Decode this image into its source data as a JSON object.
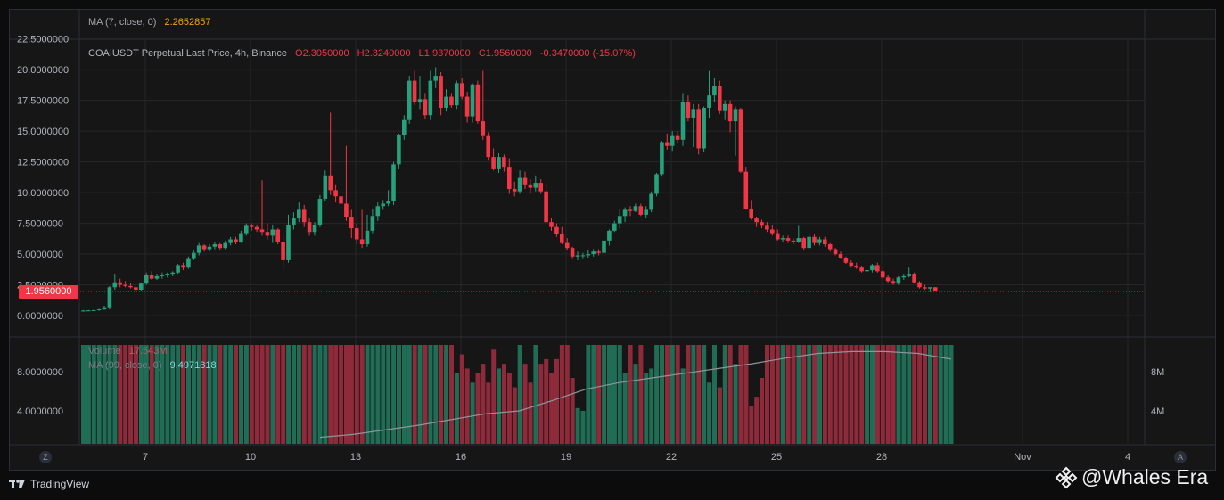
{
  "indicators": {
    "ma7": {
      "label": "MA (7, close, 0)",
      "value": "2.2652857"
    },
    "volume": {
      "label": "Volume",
      "value": "17.543M"
    },
    "ma99": {
      "label": "MA (99, close, 0)",
      "value": "9.4971818"
    }
  },
  "symbol": {
    "title": "COAIUSDT Perpetual Last Price, 4h, Binance",
    "open": "O2.3050000",
    "high": "H2.3240000",
    "low": "L1.9370000",
    "close": "C1.9560000",
    "change": "-0.3470000 (-15.07%)"
  },
  "price_tag": "1.9560000",
  "corner_buttons": {
    "left": "Z",
    "right": "A"
  },
  "footer": {
    "brand": "TradingView",
    "watermark": "@Whales Era"
  },
  "colors": {
    "up": "#26a17b",
    "down": "#f23645",
    "grid": "#262626",
    "ma": "#8f9499"
  },
  "chart_data": {
    "type": "candlestick",
    "price_axis": {
      "ticks": [
        "22.5000000",
        "20.0000000",
        "17.5000000",
        "15.0000000",
        "12.5000000",
        "10.0000000",
        "7.5000000",
        "5.0000000",
        "2.5000000",
        "0.0000000"
      ],
      "range": [
        0,
        22.5
      ]
    },
    "volume_axis_left": {
      "ticks": [
        "8.0000000",
        "4.0000000"
      ]
    },
    "volume_axis_right": {
      "ticks": [
        "8M",
        "4M"
      ],
      "range_million": [
        0,
        11
      ]
    },
    "x_labels": [
      "7",
      "10",
      "13",
      "16",
      "19",
      "22",
      "25",
      "28",
      "Nov",
      "4"
    ],
    "last_price": 1.956,
    "candles_ohlc": [
      [
        0.4,
        0.45,
        0.35,
        0.4
      ],
      [
        0.4,
        0.45,
        0.36,
        0.42
      ],
      [
        0.42,
        0.5,
        0.38,
        0.44
      ],
      [
        0.44,
        0.55,
        0.4,
        0.5
      ],
      [
        0.5,
        0.8,
        0.45,
        0.6
      ],
      [
        0.6,
        2.4,
        0.5,
        2.3
      ],
      [
        2.3,
        3.4,
        2.1,
        2.7
      ],
      [
        2.7,
        3.0,
        2.3,
        2.5
      ],
      [
        2.5,
        2.8,
        2.3,
        2.4
      ],
      [
        2.4,
        2.6,
        2.2,
        2.3
      ],
      [
        2.3,
        2.5,
        1.9,
        2.1
      ],
      [
        2.1,
        2.7,
        2.0,
        2.6
      ],
      [
        2.6,
        3.5,
        2.5,
        3.3
      ],
      [
        3.3,
        3.6,
        2.9,
        3.0
      ],
      [
        3.0,
        3.4,
        2.9,
        3.2
      ],
      [
        3.2,
        3.5,
        3.0,
        3.3
      ],
      [
        3.3,
        3.5,
        3.1,
        3.4
      ],
      [
        3.4,
        3.6,
        3.2,
        3.5
      ],
      [
        3.5,
        4.2,
        3.4,
        4.1
      ],
      [
        4.1,
        4.3,
        3.7,
        3.9
      ],
      [
        3.9,
        4.8,
        3.8,
        4.6
      ],
      [
        4.6,
        5.3,
        4.5,
        5.1
      ],
      [
        5.1,
        5.9,
        4.9,
        5.7
      ],
      [
        5.7,
        5.8,
        5.2,
        5.4
      ],
      [
        5.4,
        5.8,
        5.2,
        5.6
      ],
      [
        5.6,
        6.0,
        5.4,
        5.8
      ],
      [
        5.8,
        5.9,
        5.3,
        5.5
      ],
      [
        5.5,
        6.1,
        5.4,
        5.9
      ],
      [
        5.9,
        6.4,
        5.7,
        6.2
      ],
      [
        6.2,
        6.4,
        5.8,
        6.0
      ],
      [
        6.0,
        6.9,
        5.9,
        6.7
      ],
      [
        6.7,
        7.5,
        6.5,
        7.3
      ],
      [
        7.3,
        7.5,
        6.9,
        7.2
      ],
      [
        7.2,
        7.4,
        6.8,
        7.0
      ],
      [
        7.0,
        11.0,
        6.5,
        6.8
      ],
      [
        6.8,
        7.5,
        6.2,
        6.5
      ],
      [
        6.5,
        7.4,
        5.9,
        7.0
      ],
      [
        7.0,
        7.1,
        5.8,
        6.0
      ],
      [
        6.0,
        6.6,
        3.8,
        4.5
      ],
      [
        4.5,
        8.2,
        4.3,
        7.4
      ],
      [
        7.4,
        8.4,
        7.0,
        7.9
      ],
      [
        7.9,
        9.2,
        7.6,
        8.6
      ],
      [
        8.6,
        9.0,
        7.2,
        7.6
      ],
      [
        7.6,
        7.9,
        6.5,
        6.8
      ],
      [
        6.8,
        7.6,
        6.5,
        7.4
      ],
      [
        7.4,
        9.8,
        7.2,
        9.5
      ],
      [
        9.5,
        11.8,
        9.3,
        11.4
      ],
      [
        11.4,
        16.5,
        9.8,
        10.2
      ],
      [
        10.2,
        10.6,
        9.2,
        9.7
      ],
      [
        9.7,
        10.2,
        6.8,
        9.1
      ],
      [
        9.1,
        13.8,
        7.7,
        8.0
      ],
      [
        8.0,
        8.6,
        6.3,
        7.1
      ],
      [
        7.1,
        7.5,
        5.8,
        6.2
      ],
      [
        6.2,
        8.6,
        5.5,
        5.8
      ],
      [
        5.8,
        8.2,
        5.6,
        6.9
      ],
      [
        6.9,
        8.7,
        6.7,
        8.1
      ],
      [
        8.1,
        9.2,
        7.7,
        8.9
      ],
      [
        8.9,
        9.4,
        8.6,
        9.1
      ],
      [
        9.1,
        10.2,
        8.9,
        9.3
      ],
      [
        9.3,
        12.5,
        9.0,
        12.3
      ],
      [
        12.3,
        14.8,
        11.9,
        14.7
      ],
      [
        14.7,
        16.3,
        14.3,
        15.9
      ],
      [
        15.9,
        19.5,
        15.6,
        19.1
      ],
      [
        19.1,
        19.9,
        17.1,
        17.4
      ],
      [
        17.4,
        19.5,
        16.8,
        17.6
      ],
      [
        17.6,
        18.1,
        16.0,
        16.3
      ],
      [
        16.3,
        19.9,
        15.9,
        19.1
      ],
      [
        19.1,
        20.2,
        18.5,
        19.5
      ],
      [
        19.5,
        19.8,
        16.3,
        16.9
      ],
      [
        16.9,
        18.4,
        16.6,
        17.8
      ],
      [
        17.8,
        18.1,
        16.9,
        17.1
      ],
      [
        17.1,
        19.1,
        16.8,
        18.9
      ],
      [
        18.9,
        19.3,
        17.6,
        17.8
      ],
      [
        17.8,
        18.2,
        15.7,
        16.2
      ],
      [
        16.2,
        18.9,
        15.7,
        18.8
      ],
      [
        18.8,
        19.1,
        15.6,
        15.8
      ],
      [
        15.8,
        19.9,
        14.3,
        14.6
      ],
      [
        14.6,
        14.9,
        12.6,
        12.9
      ],
      [
        12.9,
        13.6,
        11.8,
        11.9
      ],
      [
        11.9,
        13.2,
        11.6,
        12.9
      ],
      [
        12.9,
        13.1,
        11.7,
        12.1
      ],
      [
        12.1,
        12.8,
        9.9,
        10.3
      ],
      [
        10.3,
        10.9,
        9.7,
        10.1
      ],
      [
        10.1,
        11.8,
        9.9,
        11.2
      ],
      [
        11.2,
        11.7,
        10.3,
        10.6
      ],
      [
        10.6,
        11.1,
        9.9,
        10.4
      ],
      [
        10.4,
        11.4,
        10.1,
        10.8
      ],
      [
        10.8,
        11.1,
        9.9,
        10.1
      ],
      [
        10.1,
        10.8,
        7.5,
        7.6
      ],
      [
        7.6,
        7.9,
        6.9,
        7.2
      ],
      [
        7.2,
        7.5,
        6.4,
        6.6
      ],
      [
        6.6,
        7.2,
        5.8,
        5.9
      ],
      [
        5.9,
        6.3,
        5.3,
        5.5
      ],
      [
        5.5,
        5.6,
        4.6,
        4.8
      ],
      [
        4.8,
        5.2,
        4.5,
        4.9
      ],
      [
        4.9,
        5.1,
        4.6,
        4.9
      ],
      [
        4.9,
        5.3,
        4.7,
        5.0
      ],
      [
        5.0,
        5.4,
        4.8,
        5.2
      ],
      [
        5.2,
        5.4,
        4.9,
        5.1
      ],
      [
        5.1,
        6.4,
        5.0,
        6.1
      ],
      [
        6.1,
        7.0,
        5.7,
        6.9
      ],
      [
        6.9,
        7.7,
        6.8,
        7.5
      ],
      [
        7.5,
        8.7,
        7.1,
        8.1
      ],
      [
        8.1,
        8.8,
        7.6,
        8.6
      ],
      [
        8.6,
        8.9,
        8.1,
        8.5
      ],
      [
        8.5,
        9.1,
        8.4,
        8.9
      ],
      [
        8.9,
        9.1,
        8.1,
        8.2
      ],
      [
        8.2,
        8.9,
        7.9,
        8.6
      ],
      [
        8.6,
        10.1,
        8.4,
        9.9
      ],
      [
        9.9,
        11.6,
        9.7,
        11.5
      ],
      [
        11.5,
        14.2,
        11.3,
        14.1
      ],
      [
        14.1,
        14.8,
        13.5,
        13.8
      ],
      [
        13.8,
        15.0,
        13.4,
        14.6
      ],
      [
        14.6,
        15.0,
        14.0,
        14.3
      ],
      [
        14.3,
        18.1,
        13.8,
        17.4
      ],
      [
        17.4,
        17.9,
        15.8,
        16.1
      ],
      [
        16.1,
        17.2,
        13.7,
        16.8
      ],
      [
        16.8,
        17.2,
        13.1,
        13.6
      ],
      [
        13.6,
        17.0,
        13.3,
        16.9
      ],
      [
        16.9,
        19.9,
        16.1,
        17.9
      ],
      [
        17.9,
        19.3,
        17.4,
        18.7
      ],
      [
        18.7,
        19.1,
        16.4,
        16.7
      ],
      [
        16.7,
        17.5,
        15.9,
        17.2
      ],
      [
        17.2,
        17.5,
        14.9,
        15.8
      ],
      [
        15.8,
        17.0,
        13.0,
        16.8
      ],
      [
        16.8,
        16.9,
        11.6,
        11.7
      ],
      [
        11.7,
        12.1,
        8.6,
        8.7
      ],
      [
        8.7,
        9.4,
        7.8,
        7.9
      ],
      [
        7.9,
        8.0,
        7.2,
        7.6
      ],
      [
        7.6,
        7.8,
        7.1,
        7.3
      ],
      [
        7.3,
        7.6,
        6.8,
        7.0
      ],
      [
        7.0,
        7.4,
        6.5,
        6.7
      ],
      [
        6.7,
        7.0,
        6.1,
        6.2
      ],
      [
        6.2,
        6.5,
        6.0,
        6.3
      ],
      [
        6.3,
        6.5,
        5.9,
        6.1
      ],
      [
        6.1,
        6.3,
        5.8,
        6.0
      ],
      [
        6.0,
        7.3,
        5.9,
        6.3
      ],
      [
        6.3,
        6.4,
        5.3,
        5.5
      ],
      [
        5.5,
        6.6,
        5.4,
        6.4
      ],
      [
        6.4,
        6.6,
        5.7,
        5.9
      ],
      [
        5.9,
        6.4,
        5.7,
        6.2
      ],
      [
        6.2,
        6.4,
        5.6,
        5.8
      ],
      [
        5.8,
        5.9,
        5.2,
        5.4
      ],
      [
        5.4,
        5.5,
        4.9,
        5.0
      ],
      [
        5.0,
        5.2,
        4.6,
        4.7
      ],
      [
        4.7,
        4.8,
        4.2,
        4.3
      ],
      [
        4.3,
        4.5,
        3.9,
        4.0
      ],
      [
        4.0,
        4.3,
        3.8,
        3.9
      ],
      [
        3.9,
        4.0,
        3.5,
        3.6
      ],
      [
        3.6,
        3.9,
        3.3,
        3.7
      ],
      [
        3.7,
        4.2,
        3.5,
        4.1
      ],
      [
        4.1,
        4.3,
        3.5,
        3.6
      ],
      [
        3.6,
        3.7,
        3.0,
        3.1
      ],
      [
        3.1,
        3.3,
        2.7,
        2.8
      ],
      [
        2.8,
        3.0,
        2.5,
        2.6
      ],
      [
        2.6,
        3.2,
        2.5,
        3.1
      ],
      [
        3.1,
        3.4,
        2.9,
        3.2
      ],
      [
        3.2,
        3.9,
        3.1,
        3.4
      ],
      [
        3.4,
        3.5,
        2.6,
        2.7
      ],
      [
        2.7,
        2.8,
        2.2,
        2.3
      ],
      [
        2.3,
        2.5,
        2.1,
        2.2
      ],
      [
        2.2,
        2.3,
        1.9,
        2.3
      ],
      [
        2.3,
        2.32,
        1.94,
        1.96
      ]
    ],
    "volume_million": [
      10.5,
      10.5,
      10.5,
      10.5,
      10.5,
      10.5,
      10.5,
      10.5,
      10.5,
      10.5,
      10.5,
      10.5,
      10.5,
      10.5,
      10.5,
      10.5,
      10.5,
      10.5,
      10.5,
      10.5,
      10.5,
      10.5,
      10.5,
      10.5,
      10.5,
      10.5,
      10.5,
      10.5,
      10.5,
      10.5,
      10.5,
      10.5,
      10.5,
      10.5,
      10.5,
      10.5,
      10.5,
      10.5,
      10.5,
      10.5,
      10.5,
      10.5,
      10.5,
      10.5,
      10.5,
      10.5,
      10.5,
      10.5,
      10.5,
      10.5,
      10.5,
      10.5,
      10.5,
      10.5,
      10.5,
      10.5,
      10.5,
      10.5,
      10.5,
      10.5,
      10.5,
      10.5,
      10.5,
      10.5,
      10.5,
      10.5,
      10.5,
      10.5,
      10.5,
      10.5,
      10.5,
      7.5,
      9.5,
      8.0,
      6.5,
      7.5,
      8.5,
      6.5,
      10.0,
      8.0,
      8.5,
      7.5,
      6.0,
      10.5,
      8.5,
      6.5,
      10.5,
      8.5,
      9.0,
      7.5,
      9.0,
      10.5,
      10.5,
      7.0,
      3.8,
      3.5,
      10.5,
      10.5,
      10.5,
      10.5,
      10.5,
      10.5,
      10.5,
      7.5,
      10.5,
      8.5,
      10.5,
      7.5,
      8.0,
      10.5,
      10.5,
      10.5,
      10.5,
      10.5,
      8.0,
      10.5,
      10.5,
      10.5,
      10.5,
      6.5,
      10.5,
      6.0,
      10.5,
      10.5,
      8.5,
      10.5,
      10.5,
      4.0,
      5.0,
      7.0,
      10.5,
      10.5,
      10.5,
      10.5,
      10.5,
      10.5,
      10.5,
      10.5,
      10.5,
      10.5,
      10.5,
      10.5,
      10.5,
      10.5,
      10.5,
      10.5,
      10.5,
      10.5,
      10.5,
      10.5,
      10.5,
      10.5,
      10.5,
      10.5,
      10.5,
      10.5,
      10.5,
      10.5,
      10.5,
      10.5,
      10.5,
      10.5,
      10.5,
      10.5,
      10.5,
      10.5
    ],
    "ma99_million": {
      "start_index": 45,
      "values": [
        0.7,
        1.0,
        1.5,
        2.0,
        2.6,
        3.2,
        3.5,
        4.6,
        5.8,
        6.5,
        7.0,
        7.5,
        8.0,
        8.5,
        9.1,
        9.6,
        9.8,
        9.8,
        9.6,
        9.0
      ]
    }
  }
}
